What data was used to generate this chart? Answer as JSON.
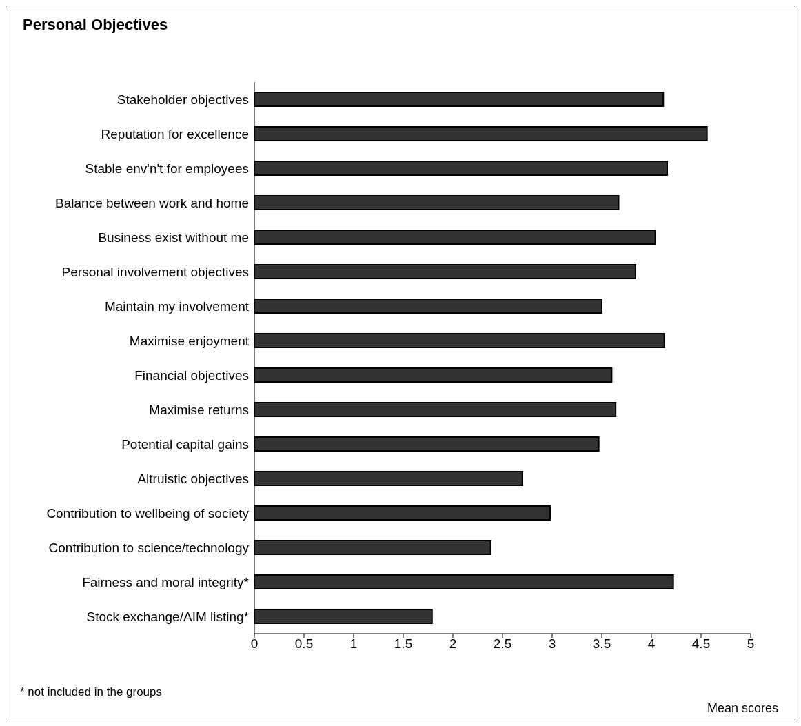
{
  "chart_data": {
    "type": "bar",
    "orientation": "horizontal",
    "title": "Personal Objectives",
    "xlabel": "Mean scores",
    "annotations": [
      "* not included in the groups"
    ],
    "categories": [
      "Stakeholder objectives",
      "Reputation for excellence",
      "Stable env'n't for employees",
      "Balance between work and home",
      "Business exist without me",
      "Personal involvement objectives",
      "Maintain my involvement",
      "Maximise enjoyment",
      "Financial objectives",
      "Maximise returns",
      "Potential capital gains",
      "Altruistic objectives",
      "Contribution to wellbeing of society",
      "Contribution to science/technology",
      "Fairness and moral integrity*",
      "Stock exchange/AIM listing*"
    ],
    "values": [
      4.12,
      4.56,
      4.16,
      3.67,
      4.04,
      3.84,
      3.5,
      4.13,
      3.6,
      3.64,
      3.47,
      2.7,
      2.98,
      2.38,
      4.22,
      1.79
    ],
    "color": "#333333",
    "xlim": [
      0,
      5
    ],
    "xticks": [
      0,
      0.5,
      1,
      1.5,
      2,
      2.5,
      3,
      3.5,
      4,
      4.5,
      5
    ],
    "grid": false,
    "legend": false
  }
}
